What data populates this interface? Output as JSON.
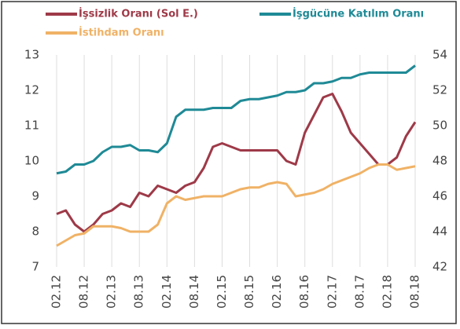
{
  "chart_data": {
    "type": "line",
    "categories": [
      "02.12",
      null,
      null,
      "08.12",
      null,
      null,
      "02.13",
      null,
      null,
      "08.13",
      null,
      null,
      "02.14",
      null,
      null,
      "08.14",
      null,
      null,
      "02.15",
      null,
      null,
      "08.15",
      null,
      null,
      "02.16",
      null,
      null,
      "08.16",
      null,
      null,
      "02.17",
      null,
      null,
      "08.17",
      null,
      null,
      "02.18",
      null,
      null,
      "08.18"
    ],
    "series": [
      {
        "name": "İşsizlik Oranı (Sol E.)",
        "color": "#9e3a48",
        "axis": "y",
        "values": [
          8.5,
          8.6,
          8.2,
          8.0,
          8.2,
          8.5,
          8.6,
          8.8,
          8.7,
          9.1,
          9.0,
          9.3,
          9.2,
          9.1,
          9.3,
          9.4,
          9.8,
          10.4,
          10.5,
          10.4,
          10.3,
          10.3,
          10.3,
          10.3,
          10.3,
          10.0,
          9.9,
          10.8,
          11.3,
          11.8,
          11.9,
          11.4,
          10.8,
          10.5,
          10.2,
          9.9,
          9.9,
          10.1,
          10.7,
          11.1
        ]
      },
      {
        "name": "İşgücüne Katılım Oranı",
        "color": "#1f8a96",
        "axis": "y2",
        "values": [
          47.3,
          47.4,
          47.8,
          47.8,
          48.0,
          48.5,
          48.8,
          48.8,
          48.9,
          48.6,
          48.6,
          48.5,
          49.0,
          50.5,
          50.9,
          50.9,
          50.9,
          51.0,
          51.0,
          51.0,
          51.4,
          51.5,
          51.5,
          51.6,
          51.7,
          51.9,
          51.9,
          52.0,
          52.4,
          52.4,
          52.5,
          52.7,
          52.7,
          52.9,
          53.0,
          53.0,
          53.0,
          53.0,
          53.0,
          53.4
        ]
      },
      {
        "name": "İstihdam Oranı",
        "color": "#f0b266",
        "axis": "y2",
        "values": [
          43.2,
          43.5,
          43.8,
          43.9,
          44.3,
          44.3,
          44.3,
          44.2,
          44.0,
          44.0,
          44.0,
          44.4,
          45.6,
          46.0,
          45.8,
          45.9,
          46.0,
          46.0,
          46.0,
          46.2,
          46.4,
          46.5,
          46.5,
          46.7,
          46.8,
          46.7,
          46.0,
          46.1,
          46.2,
          46.4,
          46.7,
          46.9,
          47.1,
          47.3,
          47.6,
          47.8,
          47.8,
          47.5,
          47.6,
          47.7
        ]
      }
    ],
    "ylim": [
      7,
      13
    ],
    "yticks": [
      7,
      8,
      9,
      10,
      11,
      12,
      13
    ],
    "y2lim": [
      42,
      54
    ],
    "y2ticks": [
      42,
      44,
      46,
      48,
      50,
      52,
      54
    ],
    "grid": true
  }
}
